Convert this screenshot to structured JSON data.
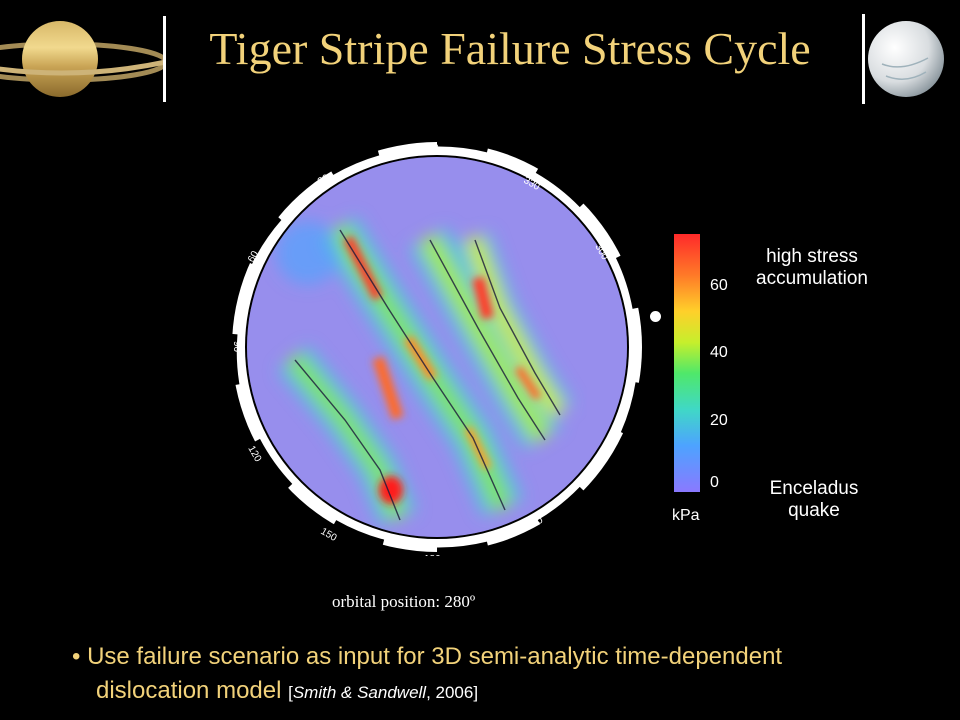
{
  "slide": {
    "title": "Tiger Stripe Failure Stress Cycle"
  },
  "images": {
    "saturn": "saturn-image",
    "enceladus": "enceladus-image"
  },
  "dial": {
    "labels": [
      "0",
      "330",
      "300",
      "270",
      "240",
      "210",
      "180",
      "150",
      "120",
      "90",
      "60",
      "30"
    ]
  },
  "colorbar": {
    "ticks": [
      "60",
      "40",
      "20",
      "0"
    ],
    "unit": "kPa",
    "top_note_1": "high stress",
    "top_note_2": "accumulation",
    "bottom_note_1": "Enceladus",
    "bottom_note_2": "quake"
  },
  "caption": "orbital position: 280º",
  "bullet": {
    "marker": "•",
    "line1": "Use failure scenario as input for 3D semi-analytic time-dependent",
    "line2": "dislocation model",
    "cite_open": "[",
    "cite_author": "Smith & Sandwell",
    "cite_year": ", 2006",
    "cite_close": "]"
  }
}
